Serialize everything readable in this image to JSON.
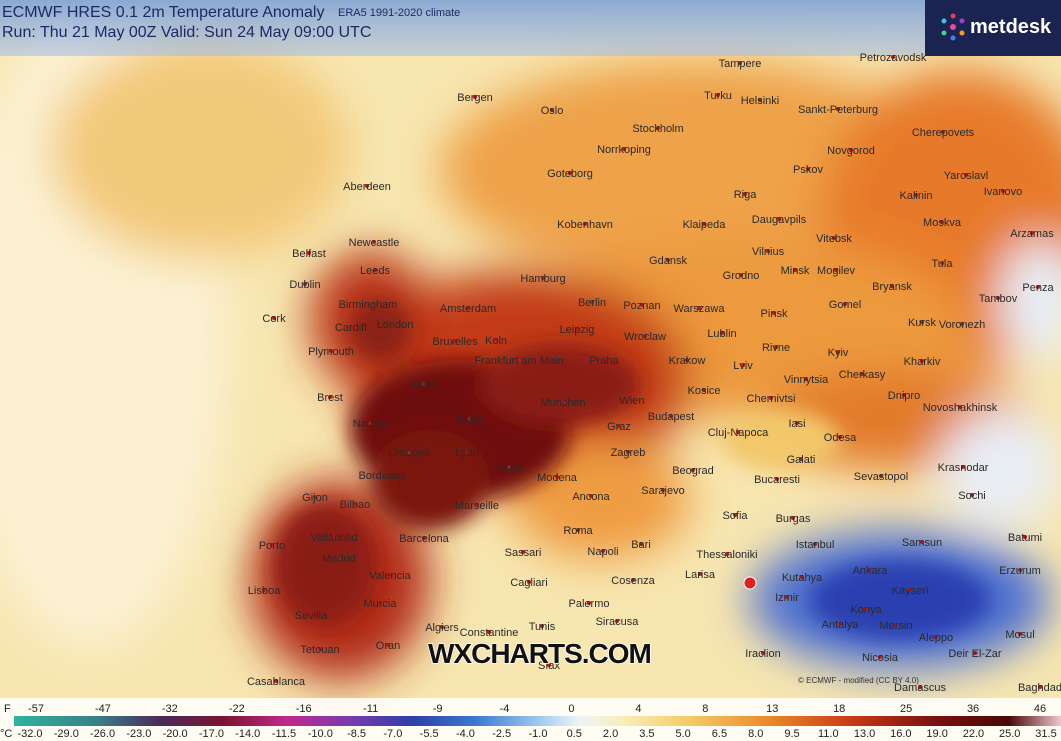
{
  "header": {
    "title": "ECMWF HRES 0.1 2m Temperature Anomaly",
    "climate": "ERA5 1991-2020 climate",
    "run": "Run: Thu 21 May 00Z Valid: Sun 24 May 09:00 UTC"
  },
  "brand": "metdesk",
  "watermark": "WXCHARTS.COM",
  "credit": "© ECMWF - modified (CC BY 4.0)",
  "cities": [
    "Tampere",
    "Petrozavodsk",
    "Bergen",
    "Oslo",
    "Turku",
    "Helsinki",
    "Sankt-Peterburg",
    "Stockholm",
    "Norrkoping",
    "Cherepovets",
    "Novgorod",
    "Pskov",
    "Yaroslavl",
    "Aberdeen",
    "Goteborg",
    "Ivanovo",
    "Kalinin",
    "Riga",
    "Moskva",
    "Daugavpils",
    "Arzamas",
    "Kobenhavn",
    "Klaipeda",
    "Vilnius",
    "Vitebsk",
    "Newcastle",
    "Belfast",
    "Leeds",
    "Gdansk",
    "Grodno",
    "Minsk",
    "Mogilev",
    "Tula",
    "Hamburg",
    "Dublin",
    "Bryansk",
    "Penza",
    "Berlin",
    "Poznan",
    "Warszawa",
    "Birmingham",
    "Amsterdam",
    "Tambov",
    "Cork",
    "Cardiff",
    "London",
    "Pinsk",
    "Gomel",
    "Kursk",
    "Voronezh",
    "Lublin",
    "Wroclaw",
    "Leipzig",
    "Koln",
    "Bruxelles",
    "Plymouth",
    "Rivne",
    "Kyiv",
    "Praha",
    "Krakow",
    "Frankfurt am Main",
    "Lviv",
    "Kharkiv",
    "Paris",
    "Vinnytsia",
    "Cherkasy",
    "Kosice",
    "Brest",
    "Munchen",
    "Wien",
    "Dnipro",
    "Chernivtsi",
    "Novoshakhinsk",
    "Nantes",
    "Budapest",
    "Graz",
    "Cluj-Napoca",
    "Iasi",
    "Odesa",
    "Dijon",
    "Zagreb",
    "Lyon",
    "Limoges",
    "Galati",
    "Krasnodar",
    "Torino",
    "Beograd",
    "Sevastopol",
    "Bordeaux",
    "Modena",
    "Bucaresti",
    "Gijon",
    "Bilbao",
    "Sarajevo",
    "Ancona",
    "Marseille",
    "Sofia",
    "Burgas",
    "Sochi",
    "Porto",
    "Valladolid",
    "Barcelona",
    "Roma",
    "Bari",
    "Thessaloniki",
    "Istanbul",
    "Samsun",
    "Batumi",
    "Madrid",
    "Sassari",
    "Napoli",
    "Valencia",
    "Larisa",
    "Kutahya",
    "Ankara",
    "Erzurum",
    "Lisboa",
    "Cagliari",
    "Cosenza",
    "Izmir",
    "Kayseri",
    "Sevilla",
    "Murcia",
    "Palermo",
    "Siracusa",
    "Konya",
    "Antalya",
    "Mersin",
    "Algiers",
    "Constantine",
    "Tunis",
    "Aleppo",
    "Mosul",
    "Tetouan",
    "Oran",
    "Iraclion",
    "Nicosia",
    "Deir El-Zar",
    "Sfax",
    "Casablanca",
    "Damascus",
    "Baghdad"
  ],
  "legend": {
    "f_unit": "F",
    "f_values": [
      -57,
      -47,
      -32,
      -22,
      -16,
      -11,
      -9,
      -4,
      0,
      4,
      8,
      13,
      18,
      25,
      36,
      46
    ],
    "c_unit": "°C",
    "c_values": [
      "-32.0",
      "-29.0",
      "-26.0",
      "-23.0",
      "-20.0",
      "-17.0",
      "-14.0",
      "-11.5",
      "-10.0",
      "-8.5",
      "-7.0",
      "-5.5",
      "-4.0",
      "-2.5",
      "-1.0",
      "0.5",
      "2.0",
      "3.5",
      "5.0",
      "6.5",
      "8.0",
      "9.5",
      "11.0",
      "13.0",
      "16.0",
      "19.0",
      "22.0",
      "25.0",
      "31.5"
    ]
  }
}
